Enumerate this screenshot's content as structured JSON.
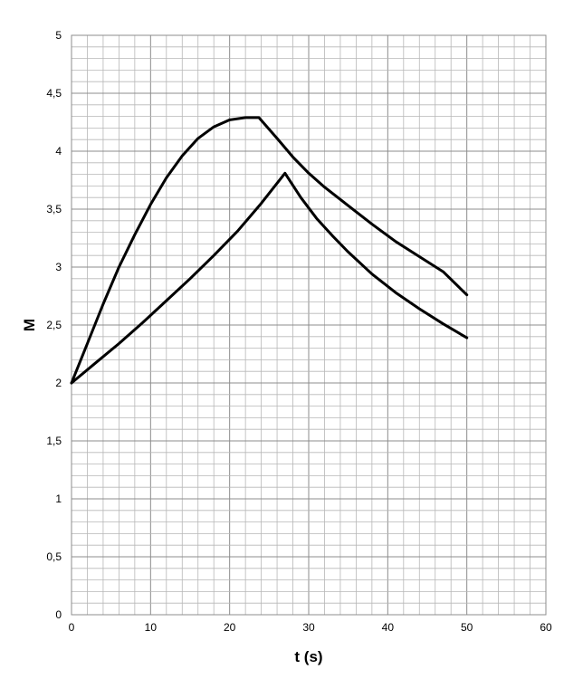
{
  "chart_data": {
    "type": "line",
    "xlabel": "t (s)",
    "ylabel": "M",
    "xlim": [
      0,
      60
    ],
    "ylim": [
      0,
      5
    ],
    "x_ticks": [
      "0",
      "10",
      "20",
      "30",
      "40",
      "50",
      "60"
    ],
    "y_ticks": [
      "0",
      "0,5",
      "1",
      "1,5",
      "2",
      "2,5",
      "3",
      "3,5",
      "4",
      "4,5",
      "5"
    ],
    "grid": true,
    "series": [
      {
        "x": [
          0,
          2,
          4,
          6,
          8,
          10,
          12,
          14,
          16,
          18,
          20,
          22,
          23.7,
          26,
          28,
          30,
          32,
          35,
          38,
          41,
          44,
          47,
          50
        ],
        "values": [
          2.0,
          2.34,
          2.68,
          3.0,
          3.28,
          3.54,
          3.77,
          3.96,
          4.11,
          4.21,
          4.27,
          4.29,
          4.29,
          4.11,
          3.95,
          3.81,
          3.69,
          3.53,
          3.37,
          3.22,
          3.09,
          2.96,
          2.76
        ]
      },
      {
        "x": [
          0,
          3,
          6,
          9,
          12,
          15,
          18,
          21,
          24,
          27,
          29,
          31,
          33,
          35,
          38,
          41,
          44,
          47,
          50
        ],
        "values": [
          2.0,
          2.17,
          2.34,
          2.52,
          2.71,
          2.9,
          3.1,
          3.31,
          3.55,
          3.81,
          3.6,
          3.42,
          3.27,
          3.13,
          2.94,
          2.78,
          2.64,
          2.51,
          2.39
        ]
      }
    ]
  }
}
